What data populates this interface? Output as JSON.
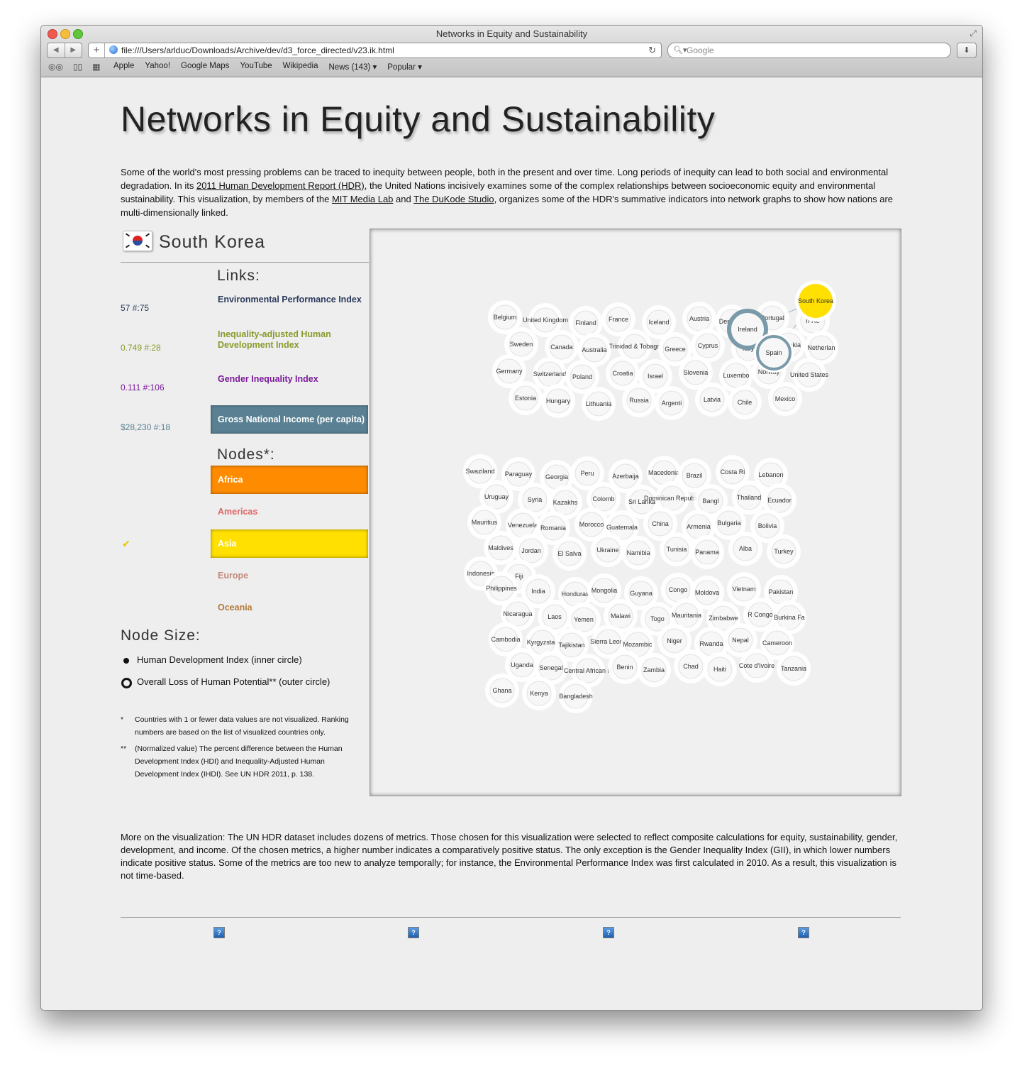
{
  "browser": {
    "window_title": "Networks in Equity and Sustainability",
    "url": "file:///Users/arlduc/Downloads/Archive/dev/d3_force_directed/v23.ik.html",
    "search_placeholder": "Google",
    "bookmarks": [
      "Apple",
      "Yahoo!",
      "Google Maps",
      "YouTube",
      "Wikipedia",
      "News (143) ▾",
      "Popular ▾"
    ]
  },
  "page": {
    "title": "Networks in Equity and Sustainability",
    "intro": {
      "t1": "Some of the world's most pressing problems can be traced to inequity between people, both in the present and over time. Long periods of inequity can lead to both social and environmental degradation. In its ",
      "link1": "2011 Human Development Report (HDR)",
      "t2": ", the United Nations incisively examines some of the complex relationships between socioeconomic equity and environmental sustainability. This visualization, by members of the ",
      "link2": "MIT Media Lab",
      "t3": " and ",
      "link3": "The DuKode Studio",
      "t4": ", organizes some of the HDR's summative indicators into network graphs to show how nations are multi-dimensionally linked."
    }
  },
  "panel": {
    "country": "South Korea",
    "links_heading": "Links:",
    "links": [
      {
        "label": "Environmental Performance Index",
        "value": "57 #:75",
        "color": "#2b3a5c"
      },
      {
        "label": "Inequality-adjusted Human Development Index",
        "value": "0.749 #:28",
        "color": "#8a9a2a"
      },
      {
        "label": "Gender Inequality Index",
        "value": "0.111 #:106",
        "color": "#7a1a9a"
      },
      {
        "label": "Gross National Income (per capita)",
        "value": "$28,230 #:18",
        "color": "#5a8193"
      }
    ],
    "nodes_heading": "Nodes*:",
    "nodes": [
      {
        "label": "Africa",
        "color": "#ff8c00",
        "active": true
      },
      {
        "label": "Americas",
        "color": "#e06666",
        "active": false
      },
      {
        "label": "Asia",
        "color": "#ffe000",
        "active": true,
        "checked": true
      },
      {
        "label": "Europe",
        "color": "#c48a7a",
        "active": false
      },
      {
        "label": "Oceania",
        "color": "#b07a3a",
        "active": false
      }
    ],
    "check_mark": "✔",
    "size_heading": "Node Size:",
    "size_inner": "Human Development Index (inner circle)",
    "size_outer": "Overall Loss of Human Potential** (outer circle)",
    "footnote1_mark": "*",
    "footnote1": "Countries with 1 or fewer data values are not visualized. Ranking numbers are based on the list of visualized countries only.",
    "footnote2_mark": "**",
    "footnote2": "(Normalized value) The percent difference between the Human Development Index (HDI) and Inequality-Adjusted Human Development Index (IHDI). See UN HDR 2011, p. 138."
  },
  "graph": {
    "highlight": {
      "name": "South Korea",
      "color": "#ffe000"
    },
    "linked": [
      "Ireland",
      "Spain"
    ],
    "linked_color": "#7a9aaa",
    "nodes": [
      "Belgium",
      "United Kingdom",
      "Finland",
      "France",
      "Iceland",
      "Austria",
      "Denmark",
      "Portugal",
      "n Re",
      "Sweden",
      "Canada",
      "Australia",
      "Trinidad & Tobago",
      "Greece",
      "Cyprus",
      "Italy",
      "Slovakia",
      "Netherlan",
      "Germany",
      "Switzerland",
      "Poland",
      "Croatia",
      "Israel",
      "Slovenia",
      "Luxembo",
      "Norway",
      "United States",
      "Estonia",
      "Hungary",
      "Lithuania",
      "Russia",
      "Argenti",
      "Latvia",
      "Chile",
      "Mexico",
      "Swaziland",
      "Paraguay",
      "Georgia",
      "Peru",
      "Azerbaija",
      "Macedonia",
      "Brazil",
      "Costa Ri",
      "Lebanon",
      "Uruguay",
      "Syria",
      "Kazakhs",
      "Colomb",
      "Sri Lanka",
      "Dominican Republic",
      "Bangl",
      "Thailand",
      "Ecuador",
      "Mauritius",
      "Venezuela",
      "Romania",
      "Morocco",
      "Guatemala",
      "China",
      "Armenia",
      "Bulgaria",
      "Bolivia",
      "Maldives",
      "Jordan",
      "El Salva",
      "Ukraine",
      "Namibia",
      "Tunisia",
      "Panama",
      "Alba",
      "Turkey",
      "Indonesia",
      "Fiji",
      "Philippines",
      "India",
      "Honduras",
      "Mongolia",
      "Guyana",
      "Congo",
      "Moldova",
      "Vietnam",
      "Pakistan",
      "Nicaragua",
      "Laos",
      "Yemen",
      "Malawi",
      "Togo",
      "Mauritania",
      "Zimbabwe",
      "R Congo",
      "Burkina Fa",
      "Cambodia",
      "Kyrgyzstan",
      "Tajikistan",
      "Sierra Leone",
      "Mozambic",
      "Niger",
      "Rwanda",
      "Nepal",
      "Cameroon",
      "Uganda",
      "Senegal",
      "Central African R",
      "Benin",
      "Zambia",
      "Chad",
      "Haiti",
      "Cote d'Ivoire",
      "Tanzania",
      "Ghana",
      "Kenya",
      "Bangladesh"
    ]
  }
}
